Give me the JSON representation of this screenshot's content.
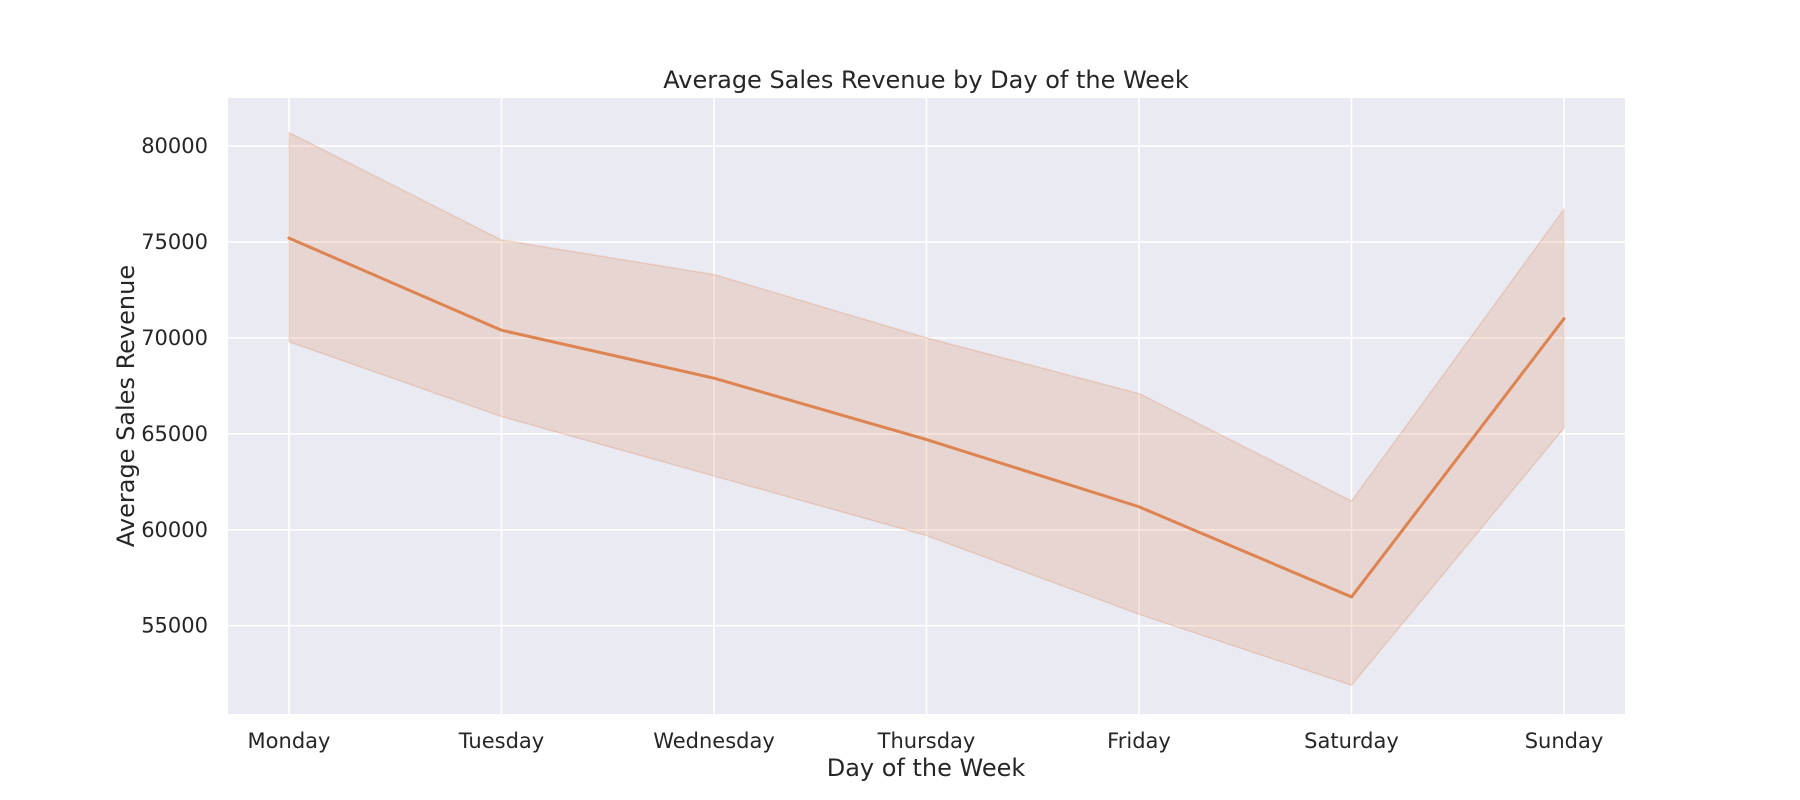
{
  "chart_data": {
    "type": "line",
    "title": "Average Sales Revenue by Day of the Week",
    "xlabel": "Day of the Week",
    "ylabel": "Average Sales Revenue",
    "categories": [
      "Monday",
      "Tuesday",
      "Wednesday",
      "Thursday",
      "Friday",
      "Saturday",
      "Sunday"
    ],
    "series": [
      {
        "values": [
          75200,
          70400,
          67900,
          64700,
          61200,
          56500,
          71000
        ],
        "ci_lower": [
          69800,
          65900,
          62800,
          59700,
          55600,
          51900,
          65300
        ],
        "ci_upper": [
          80700,
          75100,
          73300,
          70000,
          67100,
          61500,
          76700
        ],
        "color": "#dd8452"
      }
    ],
    "yticks": [
      55000,
      60000,
      65000,
      70000,
      75000,
      80000
    ],
    "ylim": [
      50400,
      82500
    ],
    "grid": true,
    "background_color": "#eaeaf2",
    "grid_color": "#ffffff"
  }
}
